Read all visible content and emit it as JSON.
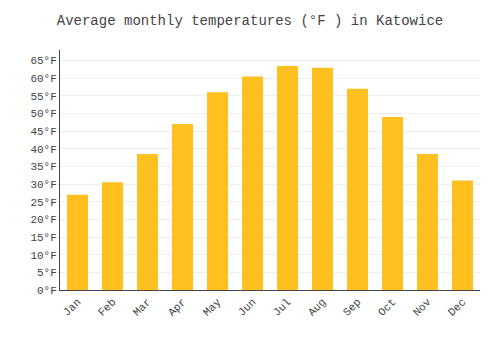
{
  "chart_data": {
    "type": "bar",
    "title": "Average monthly temperatures (°F ) in Katowice",
    "categories": [
      "Jan",
      "Feb",
      "Mar",
      "Apr",
      "May",
      "Jun",
      "Jul",
      "Aug",
      "Sep",
      "Oct",
      "Nov",
      "Dec"
    ],
    "values": [
      27,
      30.5,
      38.5,
      47,
      56,
      60.5,
      63.5,
      63,
      57,
      49,
      38.5,
      31
    ],
    "color": "#FFC020",
    "ylim": [
      0,
      68
    ],
    "yticks": [
      {
        "value": 0,
        "label": "0°F"
      },
      {
        "value": 5,
        "label": "5°F"
      },
      {
        "value": 10,
        "label": "10°F"
      },
      {
        "value": 15,
        "label": "15°F"
      },
      {
        "value": 20,
        "label": "20°F"
      },
      {
        "value": 25,
        "label": "25°F"
      },
      {
        "value": 30,
        "label": "30°F"
      },
      {
        "value": 35,
        "label": "35°F"
      },
      {
        "value": 40,
        "label": "40°F"
      },
      {
        "value": 45,
        "label": "45°F"
      },
      {
        "value": 50,
        "label": "50°F"
      },
      {
        "value": 55,
        "label": "55°F"
      },
      {
        "value": 60,
        "label": "60°F"
      },
      {
        "value": 65,
        "label": "65°F"
      }
    ],
    "grid": true
  }
}
